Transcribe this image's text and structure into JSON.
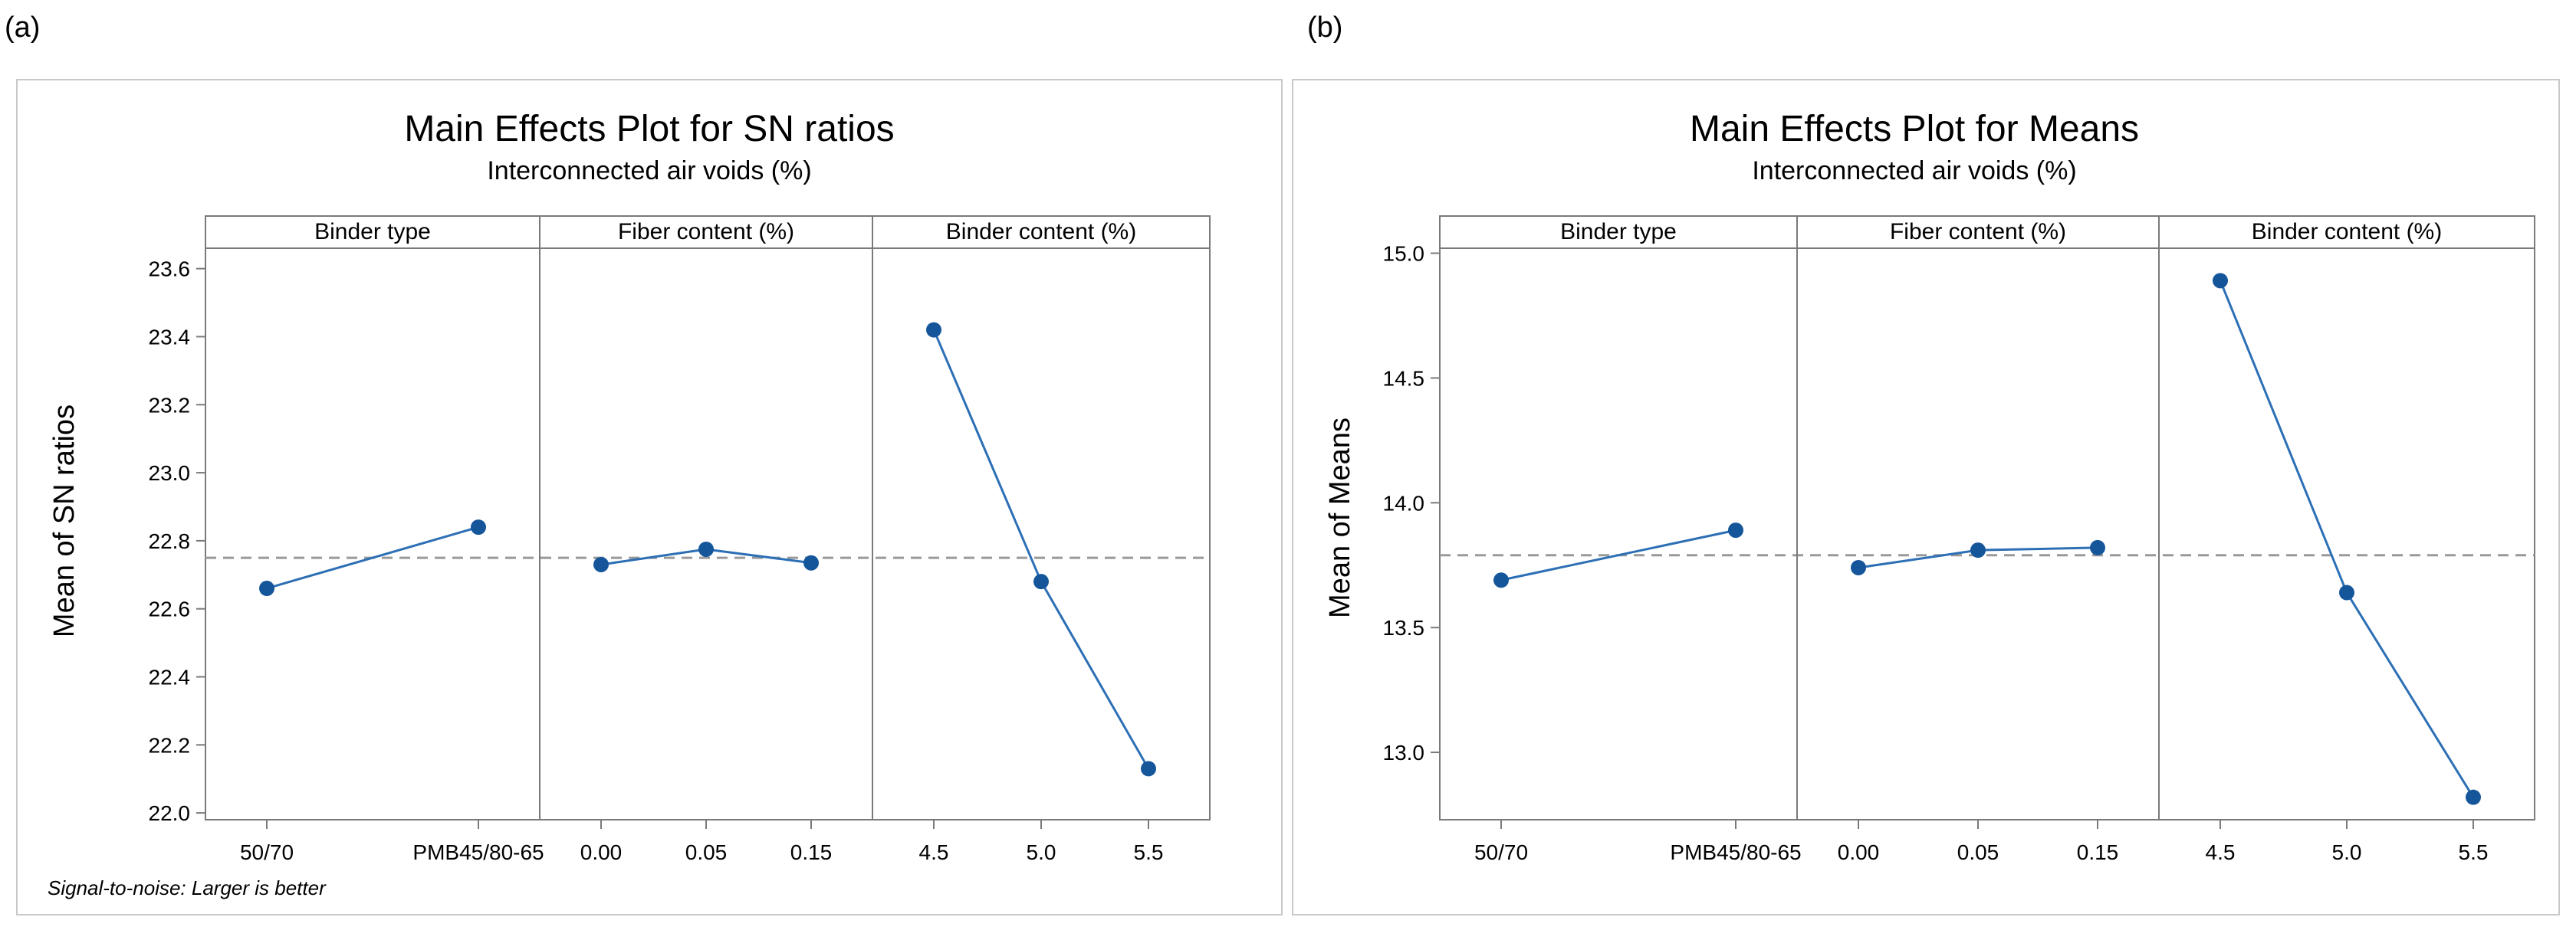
{
  "panels": [
    {
      "panel_label": "(a)",
      "title": "Main Effects Plot for SN ratios",
      "subtitle": "Interconnected air voids (%)",
      "footnote": "Signal-to-noise: Larger is better"
    },
    {
      "panel_label": "(b)",
      "title": "Main Effects Plot for Means",
      "subtitle": "Interconnected air voids (%)",
      "footnote": ""
    }
  ],
  "colors": {
    "line": "#2c6fb5",
    "marker": "#15569b",
    "refline": "#999999",
    "frame": "#7a7a7a"
  },
  "chart_data": [
    {
      "type": "line",
      "title": "Main Effects Plot for SN ratios",
      "subtitle": "Interconnected air voids (%)",
      "ylabel": "Mean of SN ratios",
      "ylim": [
        21.98,
        23.66
      ],
      "yticks": [
        "22.0",
        "22.2",
        "22.4",
        "22.6",
        "22.8",
        "23.0",
        "23.2",
        "23.4",
        "23.6"
      ],
      "reference_line": 22.75,
      "facets": [
        {
          "name": "Binder type",
          "categories": [
            "50/70",
            "PMB45/80-65"
          ],
          "values": [
            22.66,
            22.84
          ]
        },
        {
          "name": "Fiber content (%)",
          "categories": [
            "0.00",
            "0.05",
            "0.15"
          ],
          "values": [
            22.73,
            22.775,
            22.735
          ]
        },
        {
          "name": "Binder content (%)",
          "categories": [
            "4.5",
            "5.0",
            "5.5"
          ],
          "values": [
            23.42,
            22.68,
            22.13
          ]
        }
      ]
    },
    {
      "type": "line",
      "title": "Main Effects Plot for Means",
      "subtitle": "Interconnected air voids (%)",
      "ylabel": "Mean of Means",
      "ylim": [
        12.73,
        15.02
      ],
      "yticks": [
        "13.0",
        "13.5",
        "14.0",
        "14.5",
        "15.0"
      ],
      "reference_line": 13.79,
      "facets": [
        {
          "name": "Binder type",
          "categories": [
            "50/70",
            "PMB45/80-65"
          ],
          "values": [
            13.69,
            13.89
          ]
        },
        {
          "name": "Fiber content (%)",
          "categories": [
            "0.00",
            "0.05",
            "0.15"
          ],
          "values": [
            13.74,
            13.81,
            13.82
          ]
        },
        {
          "name": "Binder content (%)",
          "categories": [
            "4.5",
            "5.0",
            "5.5"
          ],
          "values": [
            14.89,
            13.64,
            12.82
          ]
        }
      ]
    }
  ]
}
